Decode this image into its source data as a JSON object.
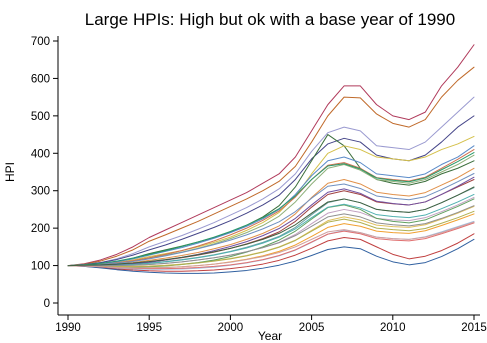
{
  "chart_data": {
    "type": "line",
    "title": "Large HPIs: High but ok with a base year of 1990",
    "xlabel": "Year",
    "ylabel": "HPI",
    "xlim": [
      1990,
      2015
    ],
    "ylim": [
      0,
      700
    ],
    "xticks": [
      1990,
      1995,
      2000,
      2005,
      2010,
      2015
    ],
    "yticks": [
      0,
      100,
      200,
      300,
      400,
      500,
      600,
      700
    ],
    "xtick_labels": [
      "1990",
      "1995",
      "2000",
      "2005",
      "2010",
      "2015"
    ],
    "ytick_labels": [
      "0",
      "100",
      "200",
      "300",
      "400",
      "500",
      "600",
      "700"
    ],
    "grid": false,
    "legend": "none",
    "x": [
      1990,
      1991,
      1992,
      1993,
      1994,
      1995,
      1996,
      1997,
      1998,
      1999,
      2000,
      2001,
      2002,
      2003,
      2004,
      2005,
      2006,
      2007,
      2008,
      2009,
      2010,
      2011,
      2012,
      2013,
      2014,
      2015
    ],
    "series": [
      {
        "color": "#b03a5b",
        "values": [
          100,
          105,
          115,
          130,
          150,
          175,
          195,
          215,
          235,
          255,
          275,
          295,
          320,
          345,
          390,
          460,
          530,
          580,
          580,
          530,
          500,
          490,
          510,
          580,
          630,
          690
        ]
      },
      {
        "color": "#c06a2a",
        "values": [
          100,
          104,
          112,
          125,
          142,
          165,
          182,
          200,
          218,
          238,
          258,
          278,
          300,
          325,
          365,
          430,
          500,
          550,
          548,
          505,
          480,
          470,
          490,
          550,
          595,
          630
        ]
      },
      {
        "color": "#9a9ad0",
        "values": [
          100,
          103,
          108,
          118,
          132,
          150,
          165,
          180,
          197,
          215,
          235,
          255,
          278,
          305,
          345,
          405,
          455,
          470,
          460,
          420,
          415,
          410,
          430,
          470,
          510,
          550
        ]
      },
      {
        "color": "#444488",
        "values": [
          100,
          103,
          108,
          116,
          128,
          142,
          155,
          170,
          186,
          202,
          220,
          240,
          262,
          288,
          330,
          385,
          425,
          440,
          430,
          395,
          385,
          380,
          395,
          430,
          470,
          500
        ]
      },
      {
        "color": "#3b6e3b",
        "values": [
          100,
          102,
          105,
          110,
          120,
          132,
          142,
          152,
          163,
          175,
          190,
          208,
          230,
          260,
          310,
          380,
          450,
          420,
          360,
          330,
          320,
          315,
          325,
          345,
          360,
          380
        ]
      },
      {
        "color": "#d4c04a",
        "values": [
          100,
          102,
          104,
          108,
          115,
          124,
          132,
          140,
          150,
          162,
          176,
          194,
          215,
          242,
          285,
          345,
          400,
          420,
          410,
          390,
          385,
          380,
          390,
          410,
          425,
          445
        ]
      },
      {
        "color": "#5a8ac8",
        "values": [
          100,
          102,
          105,
          110,
          118,
          128,
          138,
          148,
          160,
          173,
          188,
          205,
          225,
          250,
          290,
          340,
          380,
          390,
          375,
          345,
          340,
          335,
          345,
          370,
          390,
          420
        ]
      },
      {
        "color": "#8fb07a",
        "values": [
          100,
          101,
          103,
          106,
          112,
          120,
          128,
          136,
          146,
          158,
          172,
          188,
          207,
          232,
          270,
          318,
          360,
          370,
          355,
          330,
          325,
          320,
          330,
          350,
          370,
          395
        ]
      },
      {
        "color": "#e0904a",
        "values": [
          100,
          101,
          102,
          104,
          108,
          114,
          120,
          127,
          135,
          145,
          156,
          170,
          186,
          206,
          238,
          282,
          320,
          330,
          318,
          296,
          290,
          286,
          295,
          315,
          335,
          360
        ]
      },
      {
        "color": "#a04040",
        "values": [
          100,
          101,
          102,
          103,
          106,
          110,
          115,
          121,
          128,
          136,
          146,
          158,
          172,
          190,
          218,
          256,
          290,
          300,
          290,
          270,
          265,
          262,
          270,
          290,
          310,
          330
        ]
      },
      {
        "color": "#6aa0a0",
        "values": [
          100,
          101,
          101,
          102,
          104,
          107,
          111,
          116,
          122,
          129,
          138,
          149,
          162,
          178,
          202,
          236,
          268,
          278,
          268,
          250,
          245,
          242,
          250,
          268,
          288,
          308
        ]
      },
      {
        "color": "#c0a0c0",
        "values": [
          100,
          100,
          100,
          100,
          101,
          103,
          106,
          110,
          115,
          121,
          128,
          137,
          148,
          162,
          183,
          212,
          240,
          250,
          242,
          226,
          222,
          220,
          228,
          244,
          262,
          282
        ]
      },
      {
        "color": "#e0c060",
        "values": [
          100,
          100,
          99,
          98,
          98,
          99,
          101,
          104,
          108,
          113,
          119,
          127,
          137,
          150,
          168,
          194,
          220,
          230,
          222,
          208,
          204,
          202,
          209,
          224,
          240,
          258
        ]
      },
      {
        "color": "#f0a030",
        "values": [
          100,
          99,
          97,
          95,
          94,
          94,
          95,
          97,
          100,
          104,
          110,
          117,
          126,
          138,
          155,
          178,
          202,
          212,
          205,
          192,
          188,
          186,
          193,
          207,
          222,
          238
        ]
      },
      {
        "color": "#a0c0e0",
        "values": [
          100,
          99,
          96,
          93,
          91,
          90,
          90,
          91,
          93,
          96,
          101,
          107,
          115,
          126,
          141,
          162,
          184,
          194,
          188,
          176,
          172,
          170,
          177,
          190,
          204,
          218
        ]
      },
      {
        "color": "#c04040",
        "values": [
          100,
          98,
          95,
          91,
          88,
          86,
          85,
          85,
          86,
          88,
          92,
          97,
          104,
          114,
          128,
          146,
          166,
          175,
          170,
          150,
          130,
          118,
          125,
          140,
          160,
          185
        ]
      },
      {
        "color": "#3060a0",
        "values": [
          100,
          98,
          94,
          89,
          85,
          82,
          80,
          79,
          79,
          80,
          83,
          87,
          93,
          101,
          112,
          127,
          143,
          150,
          145,
          125,
          110,
          102,
          108,
          124,
          145,
          170
        ]
      },
      {
        "color": "#60a060",
        "values": [
          100,
          99,
          98,
          96,
          96,
          97,
          99,
          103,
          108,
          115,
          124,
          136,
          150,
          168,
          192,
          224,
          255,
          262,
          250,
          226,
          218,
          214,
          222,
          240,
          258,
          278
        ]
      },
      {
        "color": "#d07050",
        "values": [
          100,
          101,
          103,
          107,
          113,
          121,
          130,
          140,
          152,
          166,
          182,
          200,
          221,
          246,
          283,
          330,
          368,
          375,
          360,
          335,
          330,
          326,
          336,
          360,
          384,
          410
        ]
      },
      {
        "color": "#7050a0",
        "values": [
          100,
          100,
          101,
          102,
          105,
          109,
          115,
          122,
          130,
          140,
          151,
          164,
          180,
          199,
          226,
          262,
          296,
          305,
          293,
          272,
          266,
          262,
          270,
          290,
          312,
          336
        ]
      },
      {
        "color": "#50b0b0",
        "values": [
          100,
          100,
          100,
          101,
          103,
          106,
          110,
          115,
          121,
          128,
          137,
          147,
          160,
          176,
          198,
          228,
          256,
          264,
          254,
          236,
          231,
          228,
          235,
          252,
          270,
          290
        ]
      },
      {
        "color": "#b0b050",
        "values": [
          100,
          99,
          98,
          97,
          97,
          98,
          100,
          103,
          107,
          112,
          118,
          126,
          136,
          149,
          167,
          192,
          216,
          224,
          215,
          200,
          196,
          193,
          199,
          213,
          228,
          245
        ]
      },
      {
        "color": "#e07070",
        "values": [
          100,
          99,
          97,
          95,
          93,
          92,
          92,
          93,
          95,
          98,
          102,
          108,
          116,
          127,
          142,
          163,
          184,
          192,
          185,
          172,
          168,
          166,
          172,
          185,
          199,
          214
        ]
      },
      {
        "color": "#7090c0",
        "values": [
          100,
          101,
          103,
          106,
          111,
          118,
          126,
          135,
          145,
          156,
          168,
          182,
          198,
          217,
          244,
          280,
          312,
          318,
          306,
          286,
          280,
          276,
          284,
          303,
          324,
          346
        ]
      },
      {
        "color": "#909090",
        "values": [
          100,
          100,
          100,
          100,
          101,
          103,
          106,
          110,
          115,
          121,
          128,
          137,
          148,
          161,
          180,
          205,
          230,
          238,
          230,
          214,
          209,
          206,
          212,
          226,
          242,
          260
        ]
      },
      {
        "color": "#2a9a6a",
        "values": [
          100,
          102,
          106,
          112,
          120,
          130,
          140,
          151,
          163,
          176,
          191,
          208,
          228,
          252,
          286,
          330,
          366,
          372,
          358,
          334,
          328,
          324,
          334,
          356,
          378,
          402
        ]
      },
      {
        "color": "#d0a0a0",
        "values": [
          100,
          99,
          97,
          95,
          94,
          94,
          95,
          97,
          100,
          104,
          109,
          116,
          124,
          135,
          150,
          170,
          190,
          196,
          188,
          176,
          172,
          170,
          176,
          188,
          202,
          216
        ]
      },
      {
        "color": "#406040",
        "values": [
          100,
          101,
          102,
          104,
          107,
          111,
          116,
          122,
          129,
          137,
          146,
          157,
          170,
          186,
          209,
          240,
          270,
          278,
          268,
          250,
          245,
          242,
          250,
          268,
          288,
          310
        ]
      }
    ]
  }
}
